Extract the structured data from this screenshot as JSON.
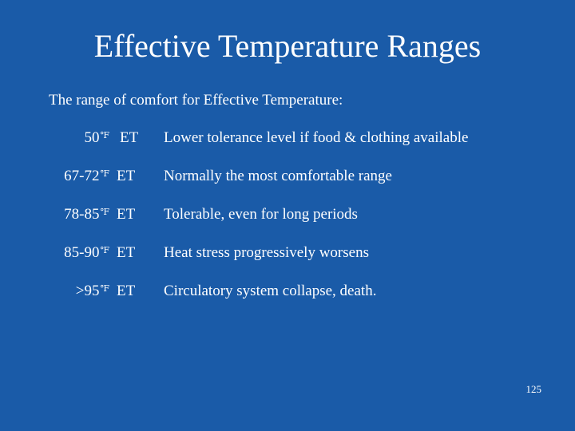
{
  "slide": {
    "title": "Effective Temperature Ranges",
    "intro": "The range of comfort for Effective Temperature:",
    "degree_symbol": "℉",
    "rows": [
      {
        "temp": "50",
        "unit": "ET",
        "desc": "Lower tolerance level if food & clothing available"
      },
      {
        "temp": "67-72",
        "unit": "ET",
        "desc": "Normally the most comfortable range"
      },
      {
        "temp": "78-85",
        "unit": "ET",
        "desc": "Tolerable, even for long periods"
      },
      {
        "temp": "85-90",
        "unit": "ET",
        "desc": "Heat stress progressively worsens"
      },
      {
        "temp": ">95",
        "unit": "ET",
        "desc": "Circulatory system collapse, death."
      }
    ],
    "page_number": "125"
  },
  "colors": {
    "background": "#1a5ba8",
    "text": "#ffffff"
  }
}
